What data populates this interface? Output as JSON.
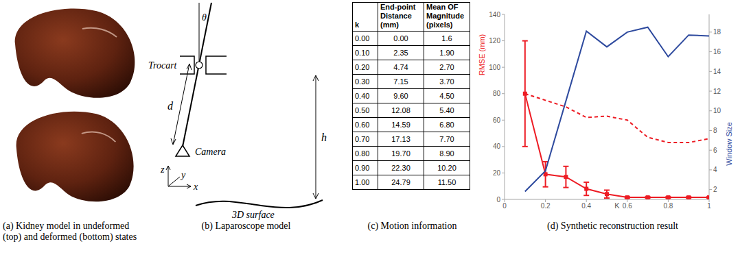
{
  "captions": [
    "(a) Kidney model in undeformed (top) and deformed (bottom) states",
    "(b) Laparoscope model",
    "(c) Motion information",
    "(d) Synthetic reconstruction result"
  ],
  "diagram": {
    "labels": {
      "theta": "θ",
      "trocart": "Trocart",
      "d": "d",
      "camera": "Camera",
      "h": "h",
      "z": "z",
      "y": "y",
      "x": "x",
      "surface": "3D surface"
    }
  },
  "table": {
    "header": [
      "k",
      "End-point Distance (mm)",
      "Mean OF Magnitude (pixels)"
    ],
    "rows": [
      [
        "0.00",
        "0.00",
        "1.6"
      ],
      [
        "0.10",
        "2.35",
        "1.90"
      ],
      [
        "0.20",
        "4.74",
        "2.70"
      ],
      [
        "0.30",
        "7.15",
        "3.70"
      ],
      [
        "0.40",
        "9.60",
        "4.50"
      ],
      [
        "0.50",
        "12.08",
        "5.40"
      ],
      [
        "0.60",
        "14.59",
        "6.80"
      ],
      [
        "0.70",
        "17.13",
        "7.70"
      ],
      [
        "0.80",
        "19.70",
        "8.90"
      ],
      [
        "0.90",
        "22.30",
        "10.20"
      ],
      [
        "1.00",
        "24.79",
        "11.50"
      ]
    ]
  },
  "chart_data": {
    "type": "line",
    "x_label": "K",
    "y_label": "RMSE (mm)",
    "y2_label": "Window Size",
    "x": [
      0.1,
      0.2,
      0.3,
      0.4,
      0.5,
      0.6,
      0.7,
      0.8,
      0.9,
      1
    ],
    "xlim": [
      0,
      1
    ],
    "xticks": [
      0,
      0.2,
      0.4,
      0.6,
      0.8,
      1
    ],
    "ylim": [
      0,
      140
    ],
    "yticks": [
      0,
      20,
      40,
      60,
      80,
      100,
      120,
      140
    ],
    "y2lim": [
      1,
      19.8
    ],
    "y2ticks": [
      2,
      4,
      6,
      8,
      10,
      12,
      14,
      16,
      18
    ],
    "grid": false,
    "series": [
      {
        "color": "#ed1c24",
        "line_style": "solid",
        "marker": "square",
        "values": [
          80,
          19,
          17,
          8,
          4,
          1.5,
          1.5,
          1.5,
          1.5,
          1.5
        ],
        "errors": [
          40,
          9.5,
          8,
          5,
          3,
          0.5,
          0.5,
          0.5,
          0.5,
          0.5
        ]
      },
      {
        "color": "#ed1c24",
        "line_style": "dashed",
        "marker": "none",
        "values": [
          80,
          75,
          70,
          62,
          63,
          60,
          47,
          43,
          43,
          46
        ]
      },
      {
        "color": "#2e4a9e",
        "line_style": "solid",
        "marker": "none",
        "axis": "y2",
        "values": [
          1.8,
          3.9,
          11,
          18.1,
          16.5,
          18,
          18.5,
          15.5,
          17.7,
          17.6
        ]
      }
    ]
  }
}
